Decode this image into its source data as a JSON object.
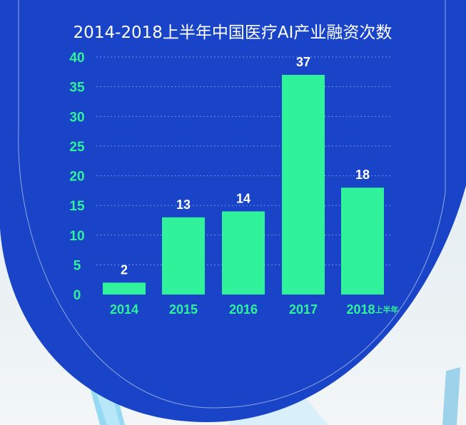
{
  "colors": {
    "panel": "#1a44c8",
    "bar": "#2ff29a",
    "text": "#ffffff",
    "grid": "#8fa6e6",
    "background": "#e6eef2"
  },
  "chart_data": {
    "type": "bar",
    "title": "2014-2018上半年中国医疗AI产业融资次数",
    "categories": [
      "2014",
      "2015",
      "2016",
      "2017",
      "2018上半年"
    ],
    "category_parts": [
      {
        "main": "2014",
        "suffix": ""
      },
      {
        "main": "2015",
        "suffix": ""
      },
      {
        "main": "2016",
        "suffix": ""
      },
      {
        "main": "2017",
        "suffix": ""
      },
      {
        "main": "2018",
        "suffix": "上半年"
      }
    ],
    "values": [
      2,
      13,
      14,
      37,
      18
    ],
    "data_labels": [
      "2",
      "13",
      "14",
      "37",
      "18"
    ],
    "ylim": [
      0,
      40
    ],
    "yticks": [
      "0",
      "5",
      "10",
      "15",
      "20",
      "25",
      "30",
      "35",
      "40"
    ],
    "grid": "dashed horizontal",
    "legend": "none",
    "xlabel": "",
    "ylabel": ""
  }
}
